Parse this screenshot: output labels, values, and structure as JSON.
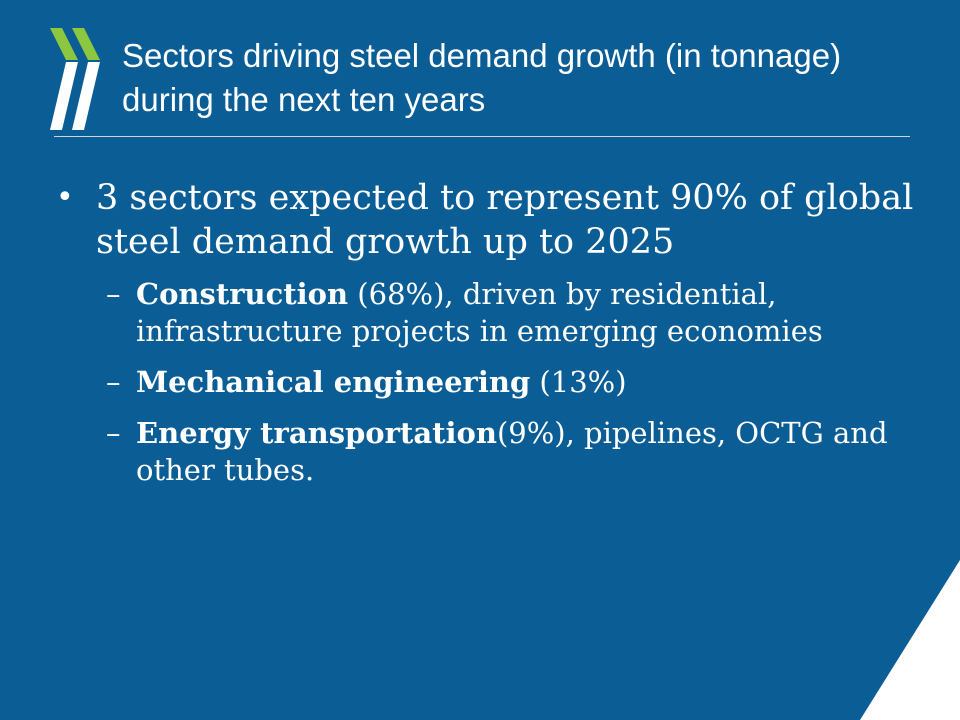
{
  "colors": {
    "background": "#0b5d96",
    "logo_green": "#8dc63f",
    "logo_white": "#ffffff",
    "text": "#ffffff",
    "corner": "#ffffff"
  },
  "icons": {
    "logo": "oecd-chevron-logo-icon",
    "bullet": "bullet-dot-icon",
    "corner": "corner-triangle-icon"
  },
  "slide": {
    "title": "Sectors driving steel demand growth (in tonnage) during the next ten years",
    "bullet": {
      "marker": "•",
      "text": "3 sectors expected to represent 90% of global steel demand growth up to 2025"
    },
    "sub_items": [
      {
        "dash": "–",
        "bold": "Construction",
        "rest": " (68%), driven by residential, infrastructure projects in emerging economies"
      },
      {
        "dash": "–",
        "bold": "Mechanical engineering",
        "rest": " (13%)"
      },
      {
        "dash": "–",
        "bold": "Energy transportation",
        "rest": "(9%), pipelines, OCTG and other tubes."
      }
    ]
  }
}
